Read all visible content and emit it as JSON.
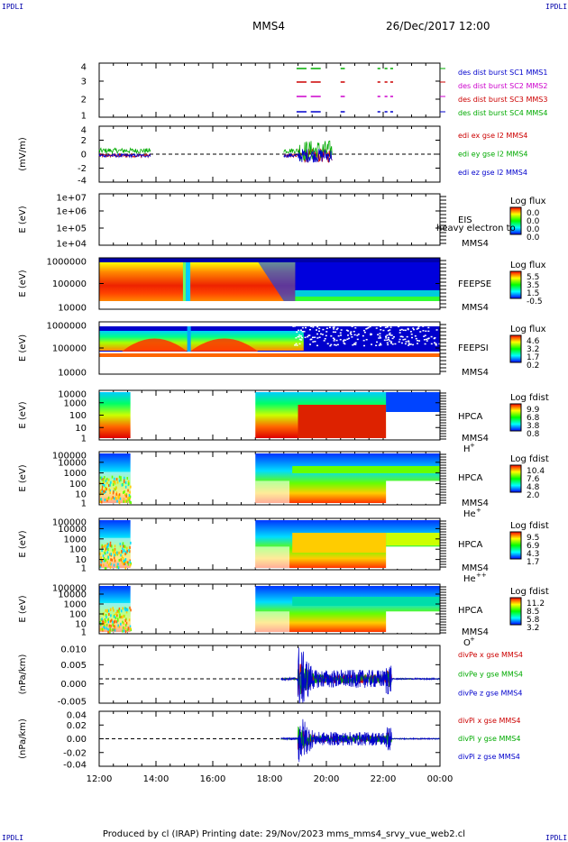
{
  "corners": {
    "tl": "IPDLI",
    "tr": "IPDLI",
    "bl": "IPDLI",
    "br": "IPDLI"
  },
  "header": {
    "title": "MMS4",
    "date": "26/Dec/2017 12:00"
  },
  "footer": "Produced by cl (IRAP)   Printing date: 29/Nov/2023   mms_mms4_srvy_vue_web2.cl",
  "time_axis": {
    "ticks": [
      "12:00",
      "14:00",
      "16:00",
      "18:00",
      "20:00",
      "22:00",
      "00:00"
    ]
  },
  "panels": {
    "p1": {
      "ylabel": "",
      "ticks": [
        "4",
        "3",
        "2",
        "1"
      ],
      "legend": [
        {
          "text": "des dist burst SC1 MMS1",
          "color": "#0000cc"
        },
        {
          "text": "des dist burst SC2 MMS2",
          "color": "#cc00cc"
        },
        {
          "text": "des dist burst SC3 MMS3",
          "color": "#cc0000"
        },
        {
          "text": "des dist burst SC4 MMS4",
          "color": "#00aa00"
        }
      ]
    },
    "p2": {
      "ylabel": "(mV/m)",
      "ticks": [
        "4",
        "2",
        "0",
        "-2",
        "-4"
      ],
      "legend": [
        {
          "text": "edi ex gse l2 MMS4",
          "color": "#cc0000"
        },
        {
          "text": "edi ey gse l2 MMS4",
          "color": "#00aa00"
        },
        {
          "text": "edi ez gse l2 MMS4",
          "color": "#0000cc"
        }
      ]
    },
    "p3": {
      "ylabel": "E (eV)",
      "ticks": [
        "1e+07",
        "1e+06",
        "1e+05",
        "1e+04"
      ],
      "inst": "EIS",
      "inst2": "heavy electron to",
      "sc": "MMS4",
      "cbtitle": "Log flux",
      "cbticks": [
        "0.0",
        "0.0",
        "0.0",
        "0.0"
      ]
    },
    "p4": {
      "ylabel": "E (eV)",
      "ticks": [
        "1000000",
        "100000",
        "10000"
      ],
      "inst": "FEEPSE",
      "sc": "MMS4",
      "cbtitle": "Log flux",
      "cbticks": [
        "5.5",
        "3.5",
        "1.5",
        "-0.5"
      ]
    },
    "p5": {
      "ylabel": "E (eV)",
      "ticks": [
        "1000000",
        "100000",
        "10000"
      ],
      "inst": "FEEPSI",
      "sc": "MMS4",
      "cbtitle": "Log flux",
      "cbticks": [
        "4.6",
        "3.2",
        "1.7",
        "0.2"
      ]
    },
    "p6": {
      "ylabel": "E (eV)",
      "ticks": [
        "10000",
        "1000",
        "100",
        "10",
        "1"
      ],
      "inst": "HPCA",
      "sc": "MMS4",
      "ion": "H",
      "ionsup": "+",
      "cbtitle": "Log fdist",
      "cbticks": [
        "9.9",
        "6.8",
        "3.8",
        "0.8"
      ]
    },
    "p7": {
      "ylabel": "E (eV)",
      "ticks": [
        "100000",
        "10000",
        "1000",
        "100",
        "10",
        "1"
      ],
      "inst": "HPCA",
      "sc": "MMS4",
      "ion": "He",
      "ionsup": "+",
      "cbtitle": "Log fdist",
      "cbticks": [
        "10.4",
        "7.6",
        "4.8",
        "2.0"
      ]
    },
    "p8": {
      "ylabel": "E (eV)",
      "ticks": [
        "100000",
        "10000",
        "1000",
        "100",
        "10",
        "1"
      ],
      "inst": "HPCA",
      "sc": "MMS4",
      "ion": "He",
      "ionsup": "++",
      "cbtitle": "Log fdist",
      "cbticks": [
        "9.5",
        "6.9",
        "4.3",
        "1.7"
      ]
    },
    "p9": {
      "ylabel": "E (eV)",
      "ticks": [
        "100000",
        "10000",
        "1000",
        "100",
        "10",
        "1"
      ],
      "inst": "HPCA",
      "sc": "MMS4",
      "ion": "O",
      "ionsup": "+",
      "cbtitle": "Log fdist",
      "cbticks": [
        "11.2",
        "8.5",
        "5.8",
        "3.2"
      ]
    },
    "p10": {
      "ylabel": "(nPa/km)",
      "ticks": [
        "0.010",
        "0.005",
        "0.000",
        "-0.005"
      ],
      "legend": [
        {
          "text": "divPe x gse MMS4",
          "color": "#cc0000"
        },
        {
          "text": "divPe y gse MMS4",
          "color": "#00aa00"
        },
        {
          "text": "divPe z gse MMS4",
          "color": "#0000cc"
        }
      ]
    },
    "p11": {
      "ylabel": "(nPa/km)",
      "ticks": [
        "0.04",
        "0.02",
        "0.00",
        "-0.02",
        "-0.04"
      ],
      "legend": [
        {
          "text": "divPi x gse MMS4",
          "color": "#cc0000"
        },
        {
          "text": "divPi y gse MMS4",
          "color": "#00aa00"
        },
        {
          "text": "divPi z gse MMS4",
          "color": "#0000cc"
        }
      ]
    }
  },
  "chart_data": {
    "type": "heatmap",
    "title": "MMS4",
    "x_range": [
      "26/Dec/2017 12:00",
      "27/Dec/2017 00:00"
    ],
    "burst_intervals_hours": [
      [
        18.95,
        19.3
      ],
      [
        19.45,
        19.8
      ],
      [
        20.5,
        20.65
      ],
      [
        21.8,
        21.9
      ],
      [
        22.05,
        22.15
      ],
      [
        22.25,
        22.35
      ]
    ],
    "edi_field_mV_per_m": {
      "ylim": [
        -4,
        4
      ],
      "data_intervals_hours": [
        [
          12.0,
          13.8
        ],
        [
          18.5,
          20.2
        ]
      ]
    },
    "hpca_coverage_hours": [
      [
        12.0,
        13.1
      ],
      [
        17.5,
        24.0
      ]
    ],
    "divPe_ylim": [
      -0.008,
      0.011
    ],
    "divPi_ylim": [
      -0.05,
      0.05
    ]
  }
}
